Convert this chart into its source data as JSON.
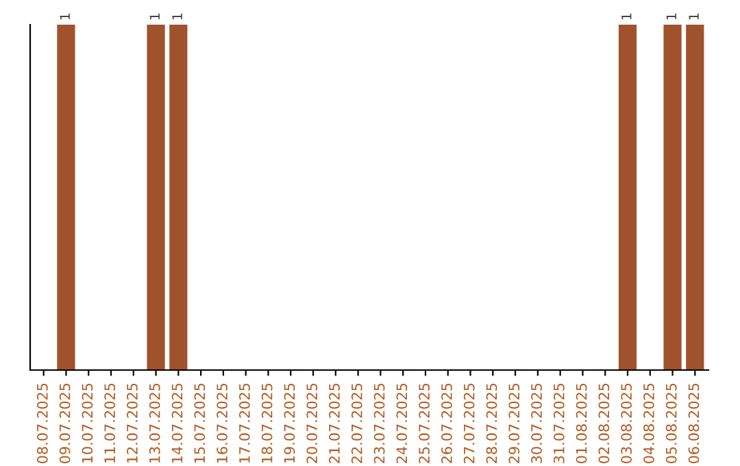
{
  "chart_data": {
    "type": "bar",
    "categories": [
      "08.07.2025",
      "09.07.2025",
      "10.07.2025",
      "11.07.2025",
      "12.07.2025",
      "13.07.2025",
      "14.07.2025",
      "15.07.2025",
      "16.07.2025",
      "17.07.2025",
      "18.07.2025",
      "19.07.2025",
      "20.07.2025",
      "21.07.2025",
      "22.07.2025",
      "23.07.2025",
      "24.07.2025",
      "25.07.2025",
      "26.07.2025",
      "27.07.2025",
      "28.07.2025",
      "29.07.2025",
      "30.07.2025",
      "31.07.2025",
      "01.08.2025",
      "02.08.2025",
      "03.08.2025",
      "04.08.2025",
      "05.08.2025",
      "06.08.2025"
    ],
    "values": [
      0,
      1,
      0,
      0,
      0,
      1,
      1,
      0,
      0,
      0,
      0,
      0,
      0,
      0,
      0,
      0,
      0,
      0,
      0,
      0,
      0,
      0,
      0,
      0,
      0,
      0,
      1,
      0,
      1,
      1
    ],
    "value_labels": [
      null,
      "1",
      null,
      null,
      null,
      "1",
      "1",
      null,
      null,
      null,
      null,
      null,
      null,
      null,
      null,
      null,
      null,
      null,
      null,
      null,
      null,
      null,
      null,
      null,
      null,
      null,
      "1",
      null,
      "1",
      "1"
    ],
    "color": "#a0522d",
    "tick_labels": "x",
    "grid": false,
    "legend": false
  }
}
